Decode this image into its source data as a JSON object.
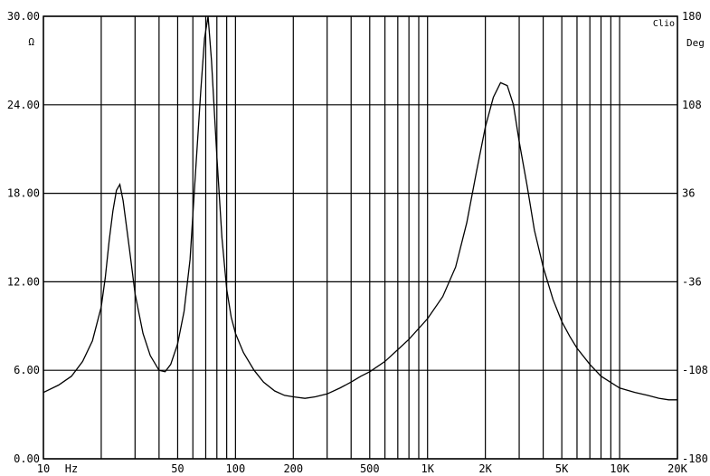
{
  "heading_fragment": "",
  "brand_label": "Clio",
  "chart_data": {
    "type": "line",
    "title": "",
    "xlabel": "",
    "ylabel": "",
    "x_scale": "log",
    "x_range": [
      10,
      20000
    ],
    "y_left": {
      "unit": "Ω",
      "range": [
        0,
        30
      ],
      "ticks": [
        {
          "value": 0,
          "label": "0.00"
        },
        {
          "value": 6,
          "label": "6.00"
        },
        {
          "value": 12,
          "label": "12.00"
        },
        {
          "value": 18,
          "label": "18.00"
        },
        {
          "value": 24,
          "label": "24.00"
        },
        {
          "value": 30,
          "label": "30.00"
        }
      ]
    },
    "y_right": {
      "unit": "Deg",
      "range": [
        -180,
        180
      ],
      "ticks": [
        {
          "value": -180,
          "label": "-180"
        },
        {
          "value": -108,
          "label": "-108"
        },
        {
          "value": -36,
          "label": "-36"
        },
        {
          "value": 36,
          "label": "36"
        },
        {
          "value": 108,
          "label": "108"
        },
        {
          "value": 180,
          "label": "180"
        }
      ]
    },
    "x_unit": "Hz",
    "x_tick_labels": [
      {
        "value": 10,
        "label": "10"
      },
      {
        "value": 50,
        "label": "50"
      },
      {
        "value": 100,
        "label": "100"
      },
      {
        "value": 200,
        "label": "200"
      },
      {
        "value": 500,
        "label": "500"
      },
      {
        "value": 1000,
        "label": "1K"
      },
      {
        "value": 2000,
        "label": "2K"
      },
      {
        "value": 5000,
        "label": "5K"
      },
      {
        "value": 10000,
        "label": "10K"
      },
      {
        "value": 20000,
        "label": "20K"
      }
    ],
    "x_grid": [
      10,
      20,
      30,
      40,
      50,
      60,
      70,
      80,
      90,
      100,
      200,
      300,
      400,
      500,
      600,
      700,
      800,
      900,
      1000,
      2000,
      3000,
      4000,
      5000,
      6000,
      7000,
      8000,
      9000,
      10000,
      20000
    ],
    "grid": true,
    "colors": {
      "curve": "#000000",
      "grid": "#000000",
      "background": "#ffffff"
    },
    "series": [
      {
        "name": "",
        "x": [
          10,
          12,
          14,
          16,
          18,
          20,
          21,
          22,
          23,
          24,
          25,
          26,
          28,
          30,
          33,
          36,
          40,
          43,
          46,
          50,
          54,
          58,
          62,
          66,
          69,
          72,
          75,
          80,
          85,
          90,
          95,
          100,
          110,
          125,
          140,
          160,
          180,
          200,
          230,
          260,
          300,
          350,
          400,
          450,
          500,
          600,
          700,
          800,
          1000,
          1200,
          1400,
          1600,
          1800,
          2000,
          2200,
          2400,
          2600,
          2800,
          3000,
          3300,
          3600,
          4000,
          4500,
          5000,
          5500,
          6000,
          7000,
          8000,
          10000,
          12000,
          14000,
          16000,
          18000,
          20000
        ],
        "values": [
          4.5,
          5.0,
          5.6,
          6.6,
          8.0,
          10.3,
          12.3,
          14.8,
          16.8,
          18.2,
          18.6,
          17.5,
          14.3,
          11.2,
          8.5,
          7.0,
          6.0,
          5.9,
          6.4,
          7.8,
          10.0,
          13.5,
          19.5,
          25.0,
          28.5,
          30.0,
          27.0,
          20.5,
          15.0,
          11.5,
          9.6,
          8.5,
          7.2,
          6.0,
          5.2,
          4.6,
          4.3,
          4.2,
          4.1,
          4.2,
          4.4,
          4.8,
          5.2,
          5.6,
          5.9,
          6.6,
          7.4,
          8.1,
          9.5,
          11.0,
          13.0,
          16.0,
          19.5,
          22.5,
          24.5,
          25.5,
          25.3,
          24.0,
          21.5,
          18.5,
          15.5,
          13.0,
          10.8,
          9.3,
          8.3,
          7.5,
          6.4,
          5.6,
          4.8,
          4.5,
          4.3,
          4.1,
          4.0,
          4.0
        ]
      }
    ]
  }
}
